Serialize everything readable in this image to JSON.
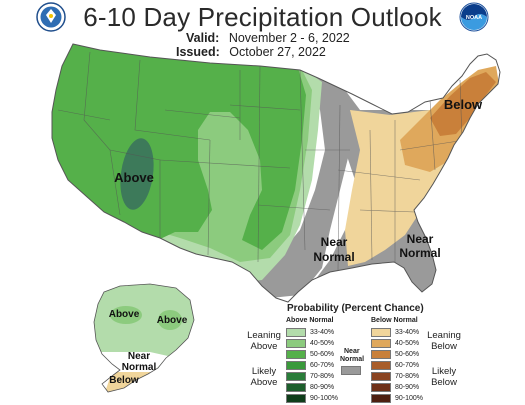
{
  "title": "6-10 Day Precipitation Outlook",
  "valid_label": "Valid:",
  "valid_value": "November 2 - 6, 2022",
  "issued_label": "Issued:",
  "issued_value": "October 27, 2022",
  "map_labels": {
    "above_west": "Above",
    "below_northeast": "Below",
    "near_normal_central_1": "Near",
    "near_normal_central_2": "Normal",
    "near_normal_southeast_1": "Near",
    "near_normal_southeast_2": "Normal",
    "alaska_above_west": "Above",
    "alaska_above_east": "Above",
    "alaska_near_1": "Near",
    "alaska_near_2": "Normal",
    "alaska_below": "Below"
  },
  "legend": {
    "title": "Probability (Percent Chance)",
    "above_header": "Above Normal",
    "below_header": "Below Normal",
    "near_header_1": "Near",
    "near_header_2": "Normal",
    "leaning_above_1": "Leaning",
    "leaning_above_2": "Above",
    "likely_above_1": "Likely",
    "likely_above_2": "Above",
    "leaning_below_1": "Leaning",
    "leaning_below_2": "Below",
    "likely_below_1": "Likely",
    "likely_below_2": "Below",
    "above": [
      {
        "range": "33-40%",
        "color": "#b3dcab"
      },
      {
        "range": "40-50%",
        "color": "#8ccb7e"
      },
      {
        "range": "50-60%",
        "color": "#55b04a"
      },
      {
        "range": "60-70%",
        "color": "#3a9a3b"
      },
      {
        "range": "70-80%",
        "color": "#2a7d3a"
      },
      {
        "range": "80-90%",
        "color": "#1d5e2c"
      },
      {
        "range": "90-100%",
        "color": "#0f3d1a"
      }
    ],
    "below": [
      {
        "range": "33-40%",
        "color": "#f0d59b"
      },
      {
        "range": "40-50%",
        "color": "#dfa85c"
      },
      {
        "range": "50-60%",
        "color": "#c9803a"
      },
      {
        "range": "60-70%",
        "color": "#a85d2a"
      },
      {
        "range": "70-80%",
        "color": "#8a4421"
      },
      {
        "range": "80-90%",
        "color": "#6e3018"
      },
      {
        "range": "90-100%",
        "color": "#4d1f10"
      }
    ],
    "near_color": "#9a9a9a"
  },
  "colors": {
    "above_33_40": "#b3dcab",
    "above_40_50": "#8ccb7e",
    "above_50_60": "#55b04a",
    "above_60_70": "#3a9a3b",
    "above_70_80": "#2a7d3a",
    "below_33_40": "#f0d59b",
    "below_40_50": "#dfa85c",
    "below_50_60": "#c9803a",
    "near_normal": "#9a9a9a",
    "state_lines": "#555555"
  },
  "icons": {
    "left_logo": "commerce-seal-icon",
    "right_logo": "noaa-logo-icon"
  },
  "noaa_text": "NOAA"
}
